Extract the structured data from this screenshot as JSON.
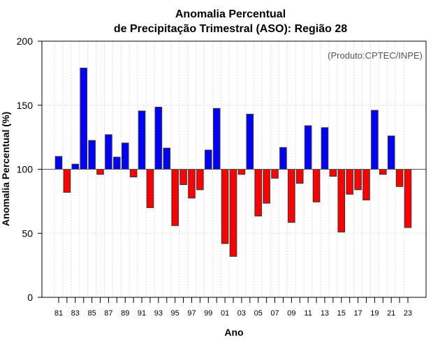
{
  "chart_data": {
    "type": "bar",
    "title": "Anomalia Percentual",
    "subtitle": "de Precipitação Trimestral (ASO): Região 28",
    "xlabel": "Ano",
    "ylabel": "Anomalia Percentual (%)",
    "credit": "(Produto:CPTEC/INPE)",
    "ylim": [
      0,
      200
    ],
    "baseline": 100,
    "yticks": [
      "0",
      "50",
      "100",
      "150",
      "200"
    ],
    "ytick_values": [
      0,
      50,
      100,
      150,
      200
    ],
    "grid": true,
    "categories": [
      "81",
      "82",
      "83",
      "84",
      "85",
      "86",
      "87",
      "88",
      "89",
      "90",
      "91",
      "92",
      "93",
      "94",
      "95",
      "96",
      "97",
      "98",
      "99",
      "00",
      "01",
      "02",
      "03",
      "04",
      "05",
      "06",
      "07",
      "08",
      "09",
      "10",
      "11",
      "12",
      "13",
      "14",
      "15",
      "16",
      "17",
      "18",
      "19",
      "20",
      "21",
      "22",
      "23"
    ],
    "xtick_labels": [
      "81",
      "83",
      "85",
      "87",
      "89",
      "91",
      "93",
      "95",
      "97",
      "99",
      "01",
      "03",
      "05",
      "07",
      "09",
      "11",
      "13",
      "15",
      "17",
      "19",
      "21",
      "23"
    ],
    "values": [
      110,
      82,
      104,
      179,
      122.5,
      96,
      127,
      109.5,
      120.5,
      94,
      145.5,
      70,
      148.5,
      116.5,
      56,
      88,
      77.5,
      84,
      115,
      147.5,
      42,
      32,
      96,
      143,
      63.5,
      73.5,
      93,
      117,
      58.5,
      89,
      134,
      74.5,
      132.5,
      94.5,
      51,
      80.5,
      84,
      76,
      146,
      96,
      126,
      86.5,
      54.5
    ],
    "colors": {
      "above": "#0000ff",
      "below": "#ff0000"
    }
  }
}
